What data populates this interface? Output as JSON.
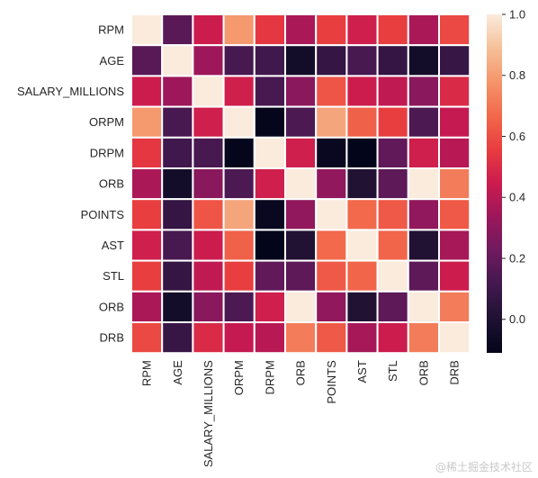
{
  "chart_data": {
    "type": "heatmap",
    "row_labels": [
      "RPM",
      "AGE",
      "SALARY_MILLIONS",
      "ORPM",
      "DRPM",
      "ORB",
      "POINTS",
      "AST",
      "STL",
      "ORB",
      "DRB"
    ],
    "col_labels": [
      "RPM",
      "AGE",
      "SALARY_MILLIONS",
      "ORPM",
      "DRPM",
      "ORB",
      "POINTS",
      "AST",
      "STL",
      "ORB",
      "DRB"
    ],
    "values": [
      [
        1.0,
        0.17,
        0.45,
        0.79,
        0.54,
        0.37,
        0.56,
        0.46,
        0.56,
        0.37,
        0.59
      ],
      [
        0.17,
        1.0,
        0.34,
        0.13,
        0.11,
        -0.04,
        0.07,
        0.13,
        0.07,
        -0.04,
        0.08
      ],
      [
        0.45,
        0.34,
        1.0,
        0.46,
        0.13,
        0.29,
        0.62,
        0.45,
        0.42,
        0.29,
        0.5
      ],
      [
        0.79,
        0.13,
        0.46,
        1.0,
        -0.1,
        0.14,
        0.82,
        0.65,
        0.56,
        0.14,
        0.43
      ],
      [
        0.54,
        0.11,
        0.13,
        -0.1,
        1.0,
        0.46,
        -0.08,
        -0.11,
        0.19,
        0.46,
        0.4
      ],
      [
        0.37,
        -0.04,
        0.29,
        0.14,
        0.46,
        1.0,
        0.31,
        0.01,
        0.18,
        1.0,
        0.72
      ],
      [
        0.56,
        0.07,
        0.62,
        0.82,
        -0.08,
        0.31,
        1.0,
        0.67,
        0.63,
        0.31,
        0.63
      ],
      [
        0.46,
        0.13,
        0.45,
        0.65,
        -0.11,
        0.01,
        0.67,
        1.0,
        0.66,
        0.01,
        0.36
      ],
      [
        0.56,
        0.07,
        0.42,
        0.56,
        0.19,
        0.18,
        0.63,
        0.66,
        1.0,
        0.18,
        0.45
      ],
      [
        0.37,
        -0.04,
        0.29,
        0.14,
        0.46,
        1.0,
        0.31,
        0.01,
        0.18,
        1.0,
        0.72
      ],
      [
        0.59,
        0.08,
        0.5,
        0.43,
        0.4,
        0.72,
        0.63,
        0.36,
        0.45,
        0.72,
        1.0
      ]
    ],
    "vmin": -0.11,
    "vmax": 1.0,
    "colormap": "rocket",
    "colorbar": {
      "ticks": [
        0.0,
        0.2,
        0.4,
        0.6,
        0.8,
        1.0
      ],
      "tick_labels": [
        "0.0",
        "0.2",
        "0.4",
        "0.6",
        "0.8",
        "1.0"
      ],
      "placement": "right"
    },
    "cell_border_color": "#ffffff"
  },
  "watermark": "@稀土掘金技术社区"
}
